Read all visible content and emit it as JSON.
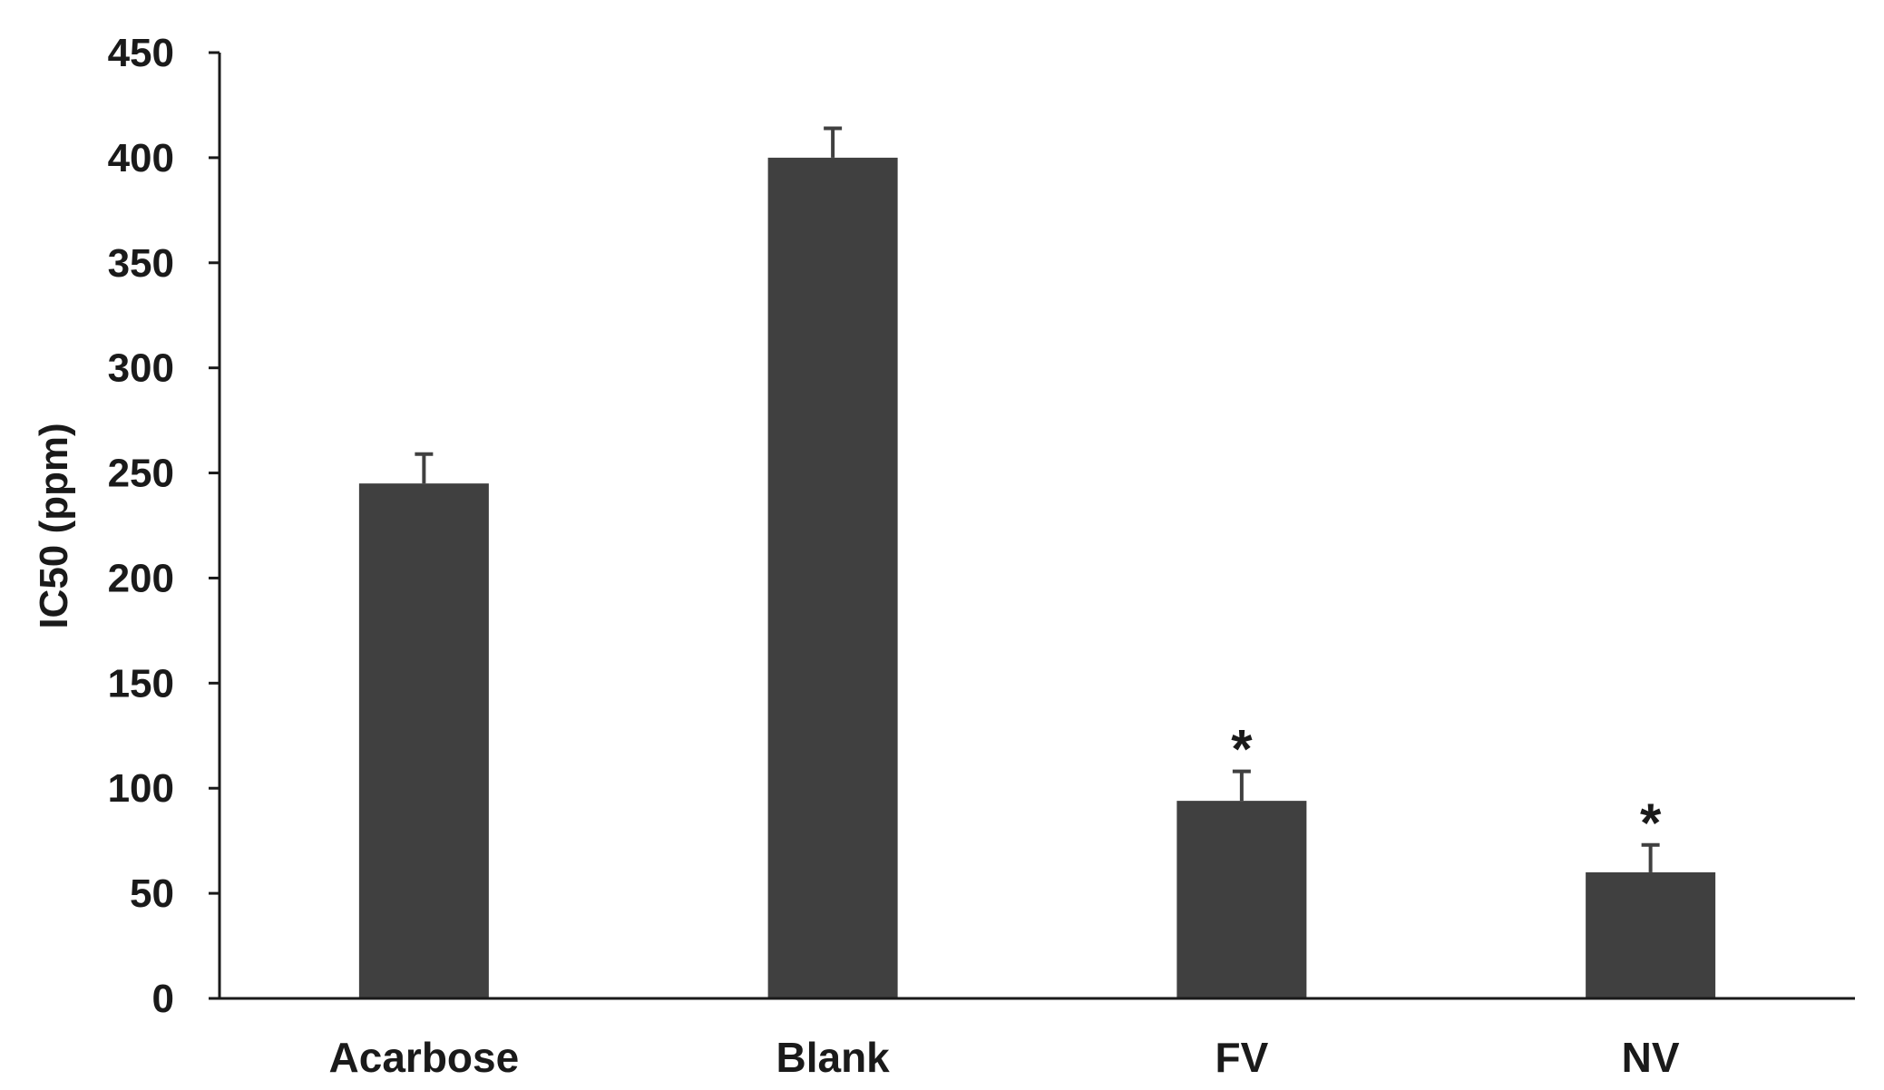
{
  "chart_data": {
    "type": "bar",
    "title": "",
    "xlabel": "",
    "ylabel": "IC50 (ppm)",
    "categories": [
      "Acarbose",
      "Blank",
      "FV",
      "NV"
    ],
    "values": [
      245,
      400,
      94,
      60
    ],
    "errors": [
      14,
      14,
      14,
      13
    ],
    "annotations": [
      "",
      "",
      "*",
      "*"
    ],
    "ylim": [
      0,
      450
    ],
    "yticks": [
      0,
      50,
      100,
      150,
      200,
      250,
      300,
      350,
      400,
      450
    ],
    "grid": false,
    "legend": "none",
    "colors": {
      "bar": "#404040",
      "error_bar": "#404040",
      "axis": "#1a1a1a"
    }
  }
}
